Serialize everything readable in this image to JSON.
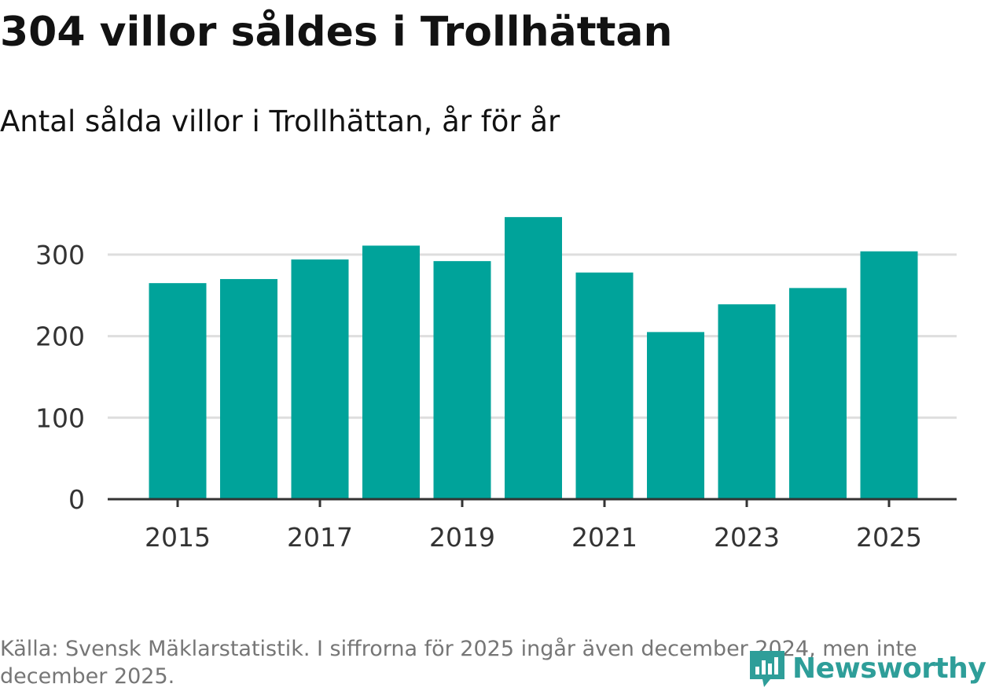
{
  "header": {
    "title": "304 villor såldes i Trollhättan",
    "subtitle": "Antal sålda villor i Trollhättan, år för år"
  },
  "footer": {
    "source": "Källa: Svensk Mäklarstatistik. I siffrorna för 2025 ingår även december 2024, men inte december 2025."
  },
  "branding": {
    "logo_text": "Newsworthy",
    "logo_icon": "newsworthy-logo-icon",
    "logo_color": "#2e9e99"
  },
  "colors": {
    "bar": "#00a39a",
    "grid": "#dedede",
    "axis": "#333333"
  },
  "chart_data": {
    "type": "bar",
    "title": "304 villor såldes i Trollhättan",
    "subtitle": "Antal sålda villor i Trollhättan, år för år",
    "xlabel": "",
    "ylabel": "",
    "categories": [
      "2015",
      "2016",
      "2017",
      "2018",
      "2019",
      "2020",
      "2021",
      "2022",
      "2023",
      "2024",
      "2025"
    ],
    "values": [
      265,
      270,
      294,
      311,
      292,
      346,
      278,
      205,
      239,
      259,
      304
    ],
    "ylim": [
      0,
      350
    ],
    "yticks": [
      0,
      100,
      200,
      300
    ],
    "xtick_labels": [
      "2015",
      "2017",
      "2019",
      "2021",
      "2023",
      "2025"
    ],
    "grid": true,
    "legend": "none"
  }
}
